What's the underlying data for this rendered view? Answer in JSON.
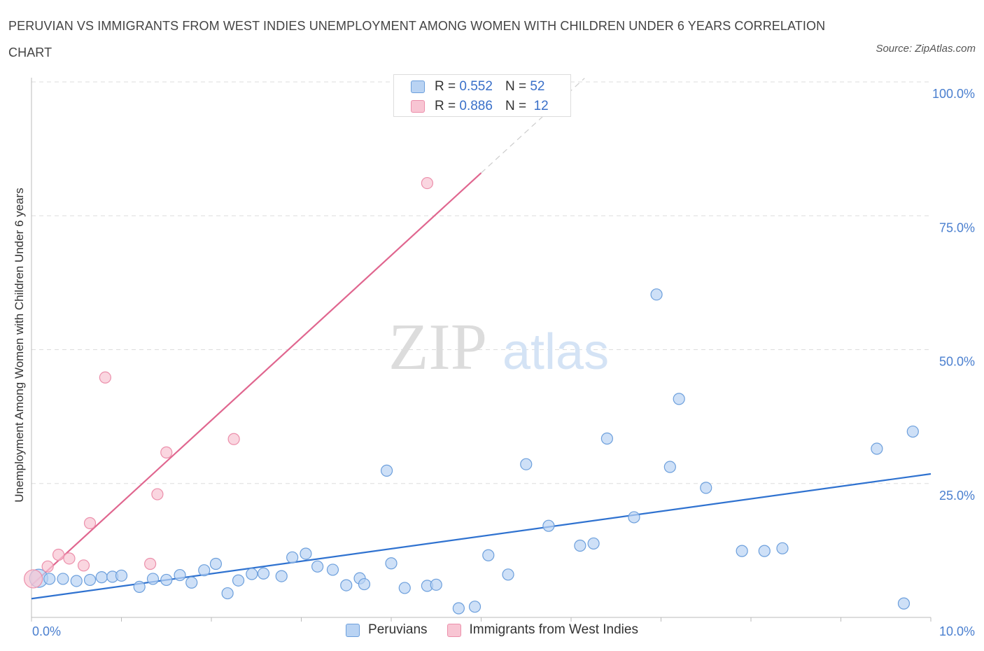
{
  "title": "PERUVIAN VS IMMIGRANTS FROM WEST INDIES UNEMPLOYMENT AMONG WOMEN WITH CHILDREN UNDER 6 YEARS CORRELATION CHART",
  "source": "Source: ZipAtlas.com",
  "watermark": {
    "zip": "ZIP",
    "atlas": "atlas"
  },
  "colors": {
    "blue_fill": "#b9d3f3",
    "blue_stroke": "#6c9fdc",
    "blue_line": "#2f72d0",
    "pink_fill": "#f8c5d3",
    "pink_stroke": "#ec8fab",
    "pink_line": "#e0668f",
    "tick_label": "#4a7fcf",
    "grid": "#dddddd"
  },
  "legend": {
    "r_label": "R =",
    "n_label": "N =",
    "rows": [
      {
        "series": "Peruvians",
        "r": "0.552",
        "n": "52"
      },
      {
        "series": "Immigrants from West Indies",
        "r": "0.886",
        "n": "12"
      }
    ]
  },
  "chart_data": {
    "type": "scatter",
    "title": "PERUVIAN VS IMMIGRANTS FROM WEST INDIES UNEMPLOYMENT AMONG WOMEN WITH CHILDREN UNDER 6 YEARS CORRELATION CHART",
    "xlabel": "",
    "ylabel": "Unemployment Among Women with Children Under 6 years",
    "xlim": [
      0,
      10
    ],
    "ylim": [
      0,
      100
    ],
    "x_tick_labels": [
      "0.0%",
      "10.0%"
    ],
    "y_ticks": [
      25,
      50,
      75,
      100
    ],
    "y_tick_labels": [
      "25.0%",
      "50.0%",
      "75.0%",
      "100.0%"
    ],
    "grid": "horizontal dashed",
    "legend_position": "top-center and bottom",
    "series": [
      {
        "name": "Peruvians",
        "points": [
          [
            0.08,
            7.3
          ],
          [
            0.2,
            7.2
          ],
          [
            0.35,
            7.2
          ],
          [
            0.5,
            6.8
          ],
          [
            0.65,
            7.0
          ],
          [
            0.78,
            7.5
          ],
          [
            0.9,
            7.6
          ],
          [
            1.0,
            7.8
          ],
          [
            1.2,
            5.7
          ],
          [
            1.35,
            7.2
          ],
          [
            1.5,
            7.0
          ],
          [
            1.65,
            7.9
          ],
          [
            1.78,
            6.5
          ],
          [
            1.92,
            8.8
          ],
          [
            2.05,
            10.0
          ],
          [
            2.18,
            4.5
          ],
          [
            2.3,
            6.9
          ],
          [
            2.45,
            8.1
          ],
          [
            2.58,
            8.2
          ],
          [
            2.78,
            7.7
          ],
          [
            2.9,
            11.2
          ],
          [
            3.05,
            11.9
          ],
          [
            3.18,
            9.5
          ],
          [
            3.35,
            8.9
          ],
          [
            3.5,
            6.0
          ],
          [
            3.65,
            7.3
          ],
          [
            3.7,
            6.2
          ],
          [
            3.95,
            27.4
          ],
          [
            4.0,
            10.1
          ],
          [
            4.15,
            5.5
          ],
          [
            4.4,
            5.9
          ],
          [
            4.5,
            6.1
          ],
          [
            4.75,
            1.7
          ],
          [
            4.93,
            2.0
          ],
          [
            5.08,
            11.6
          ],
          [
            5.3,
            8.0
          ],
          [
            5.5,
            28.6
          ],
          [
            5.75,
            17.1
          ],
          [
            6.1,
            13.4
          ],
          [
            6.25,
            13.8
          ],
          [
            6.4,
            33.4
          ],
          [
            6.7,
            18.7
          ],
          [
            6.95,
            60.3
          ],
          [
            7.1,
            28.1
          ],
          [
            7.2,
            40.8
          ],
          [
            7.5,
            24.2
          ],
          [
            7.9,
            12.4
          ],
          [
            8.15,
            12.4
          ],
          [
            8.35,
            12.9
          ],
          [
            9.4,
            31.5
          ],
          [
            9.7,
            2.6
          ],
          [
            9.8,
            34.7
          ]
        ],
        "trend": {
          "x": [
            0.0,
            10.0
          ],
          "y": [
            3.5,
            26.8
          ]
        }
      },
      {
        "name": "Immigrants from West Indies",
        "points": [
          [
            0.02,
            7.2
          ],
          [
            0.18,
            9.5
          ],
          [
            0.3,
            11.7
          ],
          [
            0.42,
            11.0
          ],
          [
            0.58,
            9.7
          ],
          [
            0.65,
            17.6
          ],
          [
            0.82,
            44.8
          ],
          [
            1.32,
            10.0
          ],
          [
            1.4,
            23.0
          ],
          [
            1.5,
            30.8
          ],
          [
            2.25,
            33.3
          ],
          [
            4.4,
            81.1
          ]
        ],
        "trend": {
          "x": [
            0.0,
            5.0
          ],
          "y": [
            6.0,
            83.0
          ]
        },
        "trend_extension": {
          "x": [
            5.0,
            6.15
          ],
          "y": [
            83.0,
            100.7
          ]
        }
      }
    ]
  },
  "bottom_legend": [
    {
      "label": "Peruvians"
    },
    {
      "label": "Immigrants from West Indies"
    }
  ]
}
